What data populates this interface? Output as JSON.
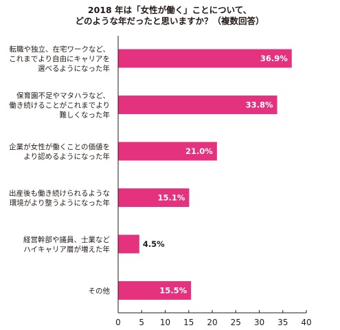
{
  "chart_data": {
    "type": "bar",
    "orientation": "horizontal",
    "title": [
      "2018 年は「女性が働く」ことについて、",
      "どのような年だったと思いますか？（複数回答）"
    ],
    "categories": [
      [
        "転職や独立、在宅ワークなど、",
        "これまでより自由にキャリアを",
        "選べるようになった年"
      ],
      [
        "保育園不足やマタハラなど、",
        "働き続けることがこれまでより",
        "難しくなった年"
      ],
      [
        "企業が女性が働くことの価値を",
        "より認めるようになった年"
      ],
      [
        "出産後も働き続けられるような",
        "環境がより整うようになった年"
      ],
      [
        "経営幹部や議員、士業など",
        "ハイキャリア層が増えた年"
      ],
      [
        "その他"
      ]
    ],
    "values": [
      36.9,
      33.8,
      21.0,
      15.1,
      4.5,
      15.5
    ],
    "value_labels": [
      "36.9%",
      "33.8%",
      "21.0%",
      "15.1%",
      "4.5%",
      "15.5%"
    ],
    "xlim": [
      0,
      40
    ],
    "xticks": [
      0,
      5,
      10,
      15,
      20,
      25,
      30,
      35,
      40
    ],
    "grid": false,
    "legend": "none",
    "bar_color": "#e5327f"
  }
}
